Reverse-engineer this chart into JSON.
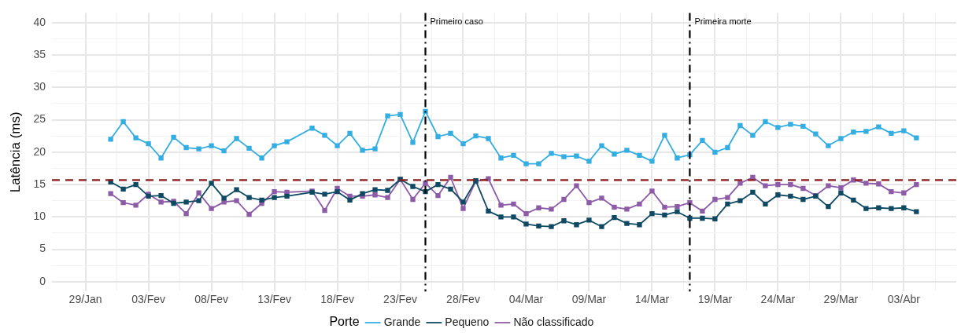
{
  "chart_data": {
    "type": "line",
    "ylabel": "Latência (ms)",
    "legend_title": "Porte",
    "legend": "bottom",
    "grid": true,
    "marker": "square",
    "line_style": "solid",
    "x": [
      "--01-31",
      "--02-01",
      "--02-02",
      "--02-03",
      "--02-04",
      "--02-05",
      "--02-06",
      "--02-07",
      "--02-08",
      "--02-09",
      "--02-10",
      "--02-11",
      "--02-12",
      "--02-13",
      "--02-14",
      "--02-16",
      "--02-17",
      "--02-18",
      "--02-19",
      "--02-20",
      "--02-21",
      "--02-22",
      "--02-23",
      "--02-24",
      "--02-25",
      "--02-26",
      "--02-27",
      "--02-28",
      "--02-29",
      "--03-01",
      "--03-02",
      "--03-03",
      "--03-04",
      "--03-05",
      "--03-06",
      "--03-07",
      "--03-08",
      "--03-09",
      "--03-10",
      "--03-11",
      "--03-12",
      "--03-13",
      "--03-14",
      "--03-15",
      "--03-16",
      "--03-17",
      "--03-18",
      "--03-19",
      "--03-20",
      "--03-21",
      "--03-22",
      "--03-23",
      "--03-24",
      "--03-25",
      "--03-26",
      "--03-27",
      "--03-28",
      "--03-29",
      "--03-30",
      "--03-31",
      "--04-01",
      "--04-02",
      "--04-03",
      "--04-04"
    ],
    "series": [
      {
        "name": "Grande",
        "color": "#33aee2",
        "values": [
          22.0,
          24.7,
          22.2,
          21.3,
          19.1,
          22.3,
          20.7,
          20.5,
          21.0,
          20.2,
          22.1,
          20.6,
          19.1,
          21.0,
          21.6,
          23.7,
          22.6,
          21.0,
          22.9,
          20.3,
          20.5,
          25.6,
          25.8,
          21.5,
          26.3,
          22.4,
          22.9,
          21.3,
          22.5,
          22.1,
          19.1,
          19.5,
          18.2,
          18.2,
          19.8,
          19.3,
          19.4,
          18.6,
          21.0,
          19.7,
          20.3,
          19.5,
          18.6,
          22.6,
          19.1,
          19.6,
          21.8,
          20.0,
          20.7,
          24.1,
          22.6,
          24.7,
          23.8,
          24.3,
          24.0,
          22.8,
          21.0,
          22.1,
          23.1,
          23.2,
          23.9,
          22.9,
          23.3,
          22.2
        ]
      },
      {
        "name": "Pequeno",
        "color": "#0e4a63",
        "values": [
          15.4,
          14.3,
          15.0,
          13.2,
          13.3,
          12.1,
          12.3,
          12.5,
          15.2,
          12.9,
          14.2,
          13.0,
          12.6,
          13.0,
          13.2,
          13.8,
          13.5,
          13.9,
          12.6,
          13.6,
          14.2,
          14.1,
          15.8,
          14.7,
          13.9,
          15.0,
          14.3,
          12.3,
          15.6,
          10.9,
          10.0,
          10.0,
          8.9,
          8.6,
          8.5,
          9.4,
          8.8,
          9.5,
          8.5,
          9.9,
          9.0,
          8.8,
          10.5,
          10.3,
          10.8,
          9.8,
          9.8,
          9.7,
          12.0,
          12.5,
          13.8,
          12.0,
          13.4,
          13.2,
          12.7,
          13.2,
          11.6,
          13.7,
          12.6,
          11.3,
          11.4,
          11.3,
          11.4,
          10.8
        ]
      },
      {
        "name": "Não classificado",
        "color": "#8e5ba8",
        "values": [
          13.6,
          12.2,
          11.8,
          13.5,
          12.3,
          12.4,
          10.5,
          13.7,
          11.3,
          12.3,
          12.5,
          10.4,
          12.1,
          13.9,
          13.8,
          14.0,
          11.0,
          14.4,
          13.2,
          13.2,
          13.4,
          13.0,
          15.8,
          12.7,
          15.2,
          13.3,
          16.1,
          11.3,
          15.5,
          15.9,
          11.8,
          12.0,
          10.5,
          11.4,
          11.2,
          12.7,
          14.8,
          12.2,
          12.9,
          11.5,
          11.2,
          12.0,
          14.0,
          11.5,
          11.6,
          12.2,
          10.9,
          12.7,
          13.0,
          15.2,
          16.1,
          14.8,
          15.0,
          15.0,
          14.4,
          13.3,
          14.8,
          14.5,
          15.7,
          15.2,
          15.1,
          13.9,
          13.7,
          15.0
        ]
      }
    ],
    "xlim": [
      "--01-26T08:00",
      "--04-07T04:00"
    ],
    "xticks": [
      {
        "value": "--01-29",
        "label": "29/Jan"
      },
      {
        "value": "--01-31T12:00",
        "label": null
      },
      {
        "value": "--02-03",
        "label": "03/Fev"
      },
      {
        "value": "--02-05T12:00",
        "label": null
      },
      {
        "value": "--02-08",
        "label": "08/Fev"
      },
      {
        "value": "--02-10T12:00",
        "label": null
      },
      {
        "value": "--02-13",
        "label": "13/Fev"
      },
      {
        "value": "--02-15T12:00",
        "label": null
      },
      {
        "value": "--02-18",
        "label": "18/Fev"
      },
      {
        "value": "--02-20T12:00",
        "label": null
      },
      {
        "value": "--02-23",
        "label": "23/Fev"
      },
      {
        "value": "--02-25T12:00",
        "label": null
      },
      {
        "value": "--02-28",
        "label": "28/Fev"
      },
      {
        "value": "--03-01T12:00",
        "label": null
      },
      {
        "value": "--03-04",
        "label": "04/Mar"
      },
      {
        "value": "--03-06T12:00",
        "label": null
      },
      {
        "value": "--03-09",
        "label": "09/Mar"
      },
      {
        "value": "--03-11T12:00",
        "label": null
      },
      {
        "value": "--03-14",
        "label": "14/Mar"
      },
      {
        "value": "--03-16T12:00",
        "label": null
      },
      {
        "value": "--03-19",
        "label": "19/Mar"
      },
      {
        "value": "--03-21T12:00",
        "label": null
      },
      {
        "value": "--03-24",
        "label": "24/Mar"
      },
      {
        "value": "--03-26T12:00",
        "label": null
      },
      {
        "value": "--03-29",
        "label": "29/Mar"
      },
      {
        "value": "--03-31T12:00",
        "label": null
      },
      {
        "value": "--04-03",
        "label": "03/Abr"
      },
      {
        "value": "--04-05T12:00",
        "label": null
      }
    ],
    "ylim": [
      -1.5,
      41.5
    ],
    "yticks": [
      0,
      {
        "value": 2.5,
        "label": null
      },
      5,
      {
        "value": 7.5,
        "label": null
      },
      10,
      {
        "value": 12.5,
        "label": null
      },
      15,
      {
        "value": 17.5,
        "label": null
      },
      20,
      {
        "value": 22.5,
        "label": null
      },
      25,
      {
        "value": 27.5,
        "label": null
      },
      30,
      {
        "value": 32.5,
        "label": null
      },
      35,
      {
        "value": 37.5,
        "label": null
      },
      40
    ],
    "ref_lines": [
      {
        "axis": "y",
        "value": 15.7,
        "label": null,
        "color": "#8b1a1a",
        "line_style": "dashed"
      },
      {
        "axis": "x",
        "value": "--02-25",
        "label": "Primeiro caso",
        "color": "#000000",
        "line_style": "dashdot"
      },
      {
        "axis": "x",
        "value": "--03-17",
        "label": "Primeira morte",
        "color": "#000000",
        "line_style": "dashdot"
      }
    ]
  }
}
